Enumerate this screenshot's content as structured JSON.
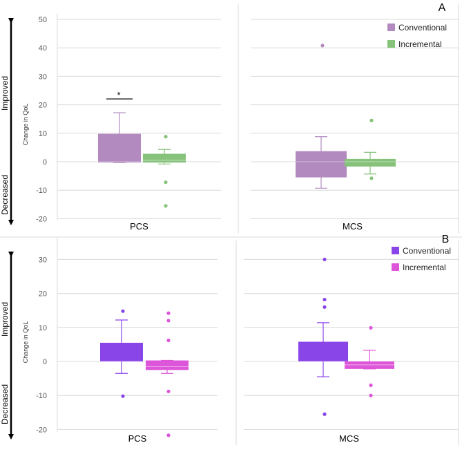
{
  "chart_data": [
    {
      "type": "box",
      "panel_label": "A",
      "ylabel": "Change in QoL",
      "ylim": [
        -20,
        50
      ],
      "yticks": [
        "-20",
        "-10",
        "0",
        "10",
        "20",
        "30",
        "40",
        "50"
      ],
      "arrow_labels": {
        "up": "Improved",
        "down": "Decreased"
      },
      "legend": [
        "Conventional",
        "Incremental"
      ],
      "colors": [
        "#B28ABF",
        "#86C27A"
      ],
      "subplots": [
        {
          "category": "PCS",
          "significance": "*",
          "boxes": [
            {
              "series": "Conventional",
              "whisker_low": -0.3,
              "q1": -0.3,
              "median": 0,
              "q3": 9.8,
              "whisker_high": 17.2,
              "outliers": []
            },
            {
              "series": "Incremental",
              "whisker_low": -0.8,
              "q1": -0.3,
              "median": 0.5,
              "q3": 2.8,
              "whisker_high": 4.3,
              "outliers": [
                8.8,
                -7.2,
                -15.5
              ]
            }
          ]
        },
        {
          "category": "MCS",
          "significance": "",
          "boxes": [
            {
              "series": "Conventional",
              "whisker_low": -9.3,
              "q1": -5.5,
              "median": 0,
              "q3": 3.7,
              "whisker_high": 8.8,
              "outliers": [
                40.8
              ]
            },
            {
              "series": "Incremental",
              "whisker_low": -4.3,
              "q1": -1.7,
              "median": 0,
              "q3": 1.0,
              "whisker_high": 3.3,
              "outliers": [
                14.5,
                -5.8
              ]
            }
          ]
        }
      ]
    },
    {
      "type": "box",
      "panel_label": "B",
      "ylabel": "Change in QoL",
      "ylim": [
        -20,
        35
      ],
      "yticks": [
        "-20",
        "-10",
        "0",
        "10",
        "20",
        "30"
      ],
      "arrow_labels": {
        "up": "Improved",
        "down": "Decreased"
      },
      "legend": [
        "Conventional",
        "Incremental"
      ],
      "colors": [
        "#8A45E8",
        "#DD55D8"
      ],
      "subplots": [
        {
          "category": "PCS",
          "significance": "",
          "boxes": [
            {
              "series": "Conventional",
              "whisker_low": -3.5,
              "q1": 0,
              "median": 0,
              "q3": 5.5,
              "whisker_high": 12.2,
              "outliers": [
                14.8,
                -10.2
              ]
            },
            {
              "series": "Incremental",
              "whisker_low": -3.5,
              "q1": -2.5,
              "median": -1.5,
              "q3": 0.3,
              "whisker_high": 0.3,
              "outliers": [
                14.2,
                12.0,
                6.2,
                -8.8,
                -21.7
              ]
            }
          ]
        },
        {
          "category": "MCS",
          "significance": "",
          "boxes": [
            {
              "series": "Conventional",
              "whisker_low": -4.5,
              "q1": 0,
              "median": 0,
              "q3": 5.8,
              "whisker_high": 11.4,
              "outliers": [
                30.0,
                18.2,
                16.0,
                -15.5
              ]
            },
            {
              "series": "Incremental",
              "whisker_low": -2.2,
              "q1": -2.2,
              "median": -1.0,
              "q3": 0.0,
              "whisker_high": 3.3,
              "outliers": [
                9.9,
                -7.0,
                -10.0
              ]
            }
          ]
        }
      ]
    }
  ]
}
